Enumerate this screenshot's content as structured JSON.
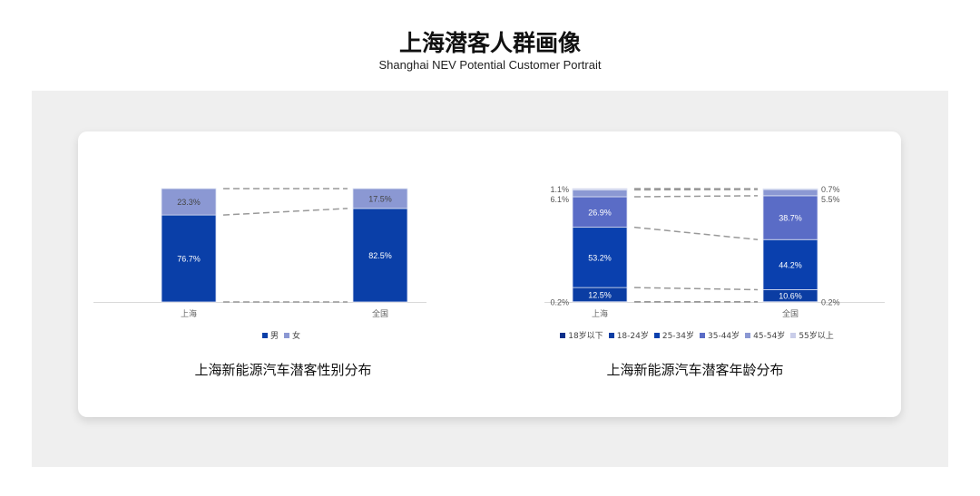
{
  "header": {
    "title": "上海潜客人群画像",
    "subtitle": "Shanghai NEV Potential Customer Portrait"
  },
  "chart_data": [
    {
      "type": "bar",
      "stacked": true,
      "title": "上海新能源汽车潜客性别分布",
      "categories": [
        "上海",
        "全国"
      ],
      "series": [
        {
          "name": "男",
          "values": [
            76.7,
            82.5
          ],
          "color": "#0a3fa8"
        },
        {
          "name": "女",
          "values": [
            23.3,
            17.5
          ],
          "color": "#8b98d3"
        }
      ],
      "ylim": [
        0,
        100
      ],
      "unit": "%",
      "legend": "bottom",
      "connectors": "dashed"
    },
    {
      "type": "bar",
      "stacked": true,
      "title": "上海新能源汽车潜客年龄分布",
      "categories": [
        "上海",
        "全国"
      ],
      "series": [
        {
          "name": "18岁以下",
          "values": [
            0.2,
            0.2
          ],
          "color": "#0a2f8a"
        },
        {
          "name": "18-24岁",
          "values": [
            12.5,
            10.6
          ],
          "color": "#0b3da3"
        },
        {
          "name": "25-34岁",
          "values": [
            53.2,
            44.2
          ],
          "color": "#0a40ae"
        },
        {
          "name": "35-44岁",
          "values": [
            26.9,
            38.7
          ],
          "color": "#5a6cc6"
        },
        {
          "name": "45-54岁",
          "values": [
            6.1,
            5.5
          ],
          "color": "#8b98d3"
        },
        {
          "name": "55岁以上",
          "values": [
            1.1,
            0.7
          ],
          "color": "#c9cde9"
        }
      ],
      "ylim": [
        0,
        100
      ],
      "unit": "%",
      "legend": "bottom",
      "connectors": "dashed"
    }
  ]
}
